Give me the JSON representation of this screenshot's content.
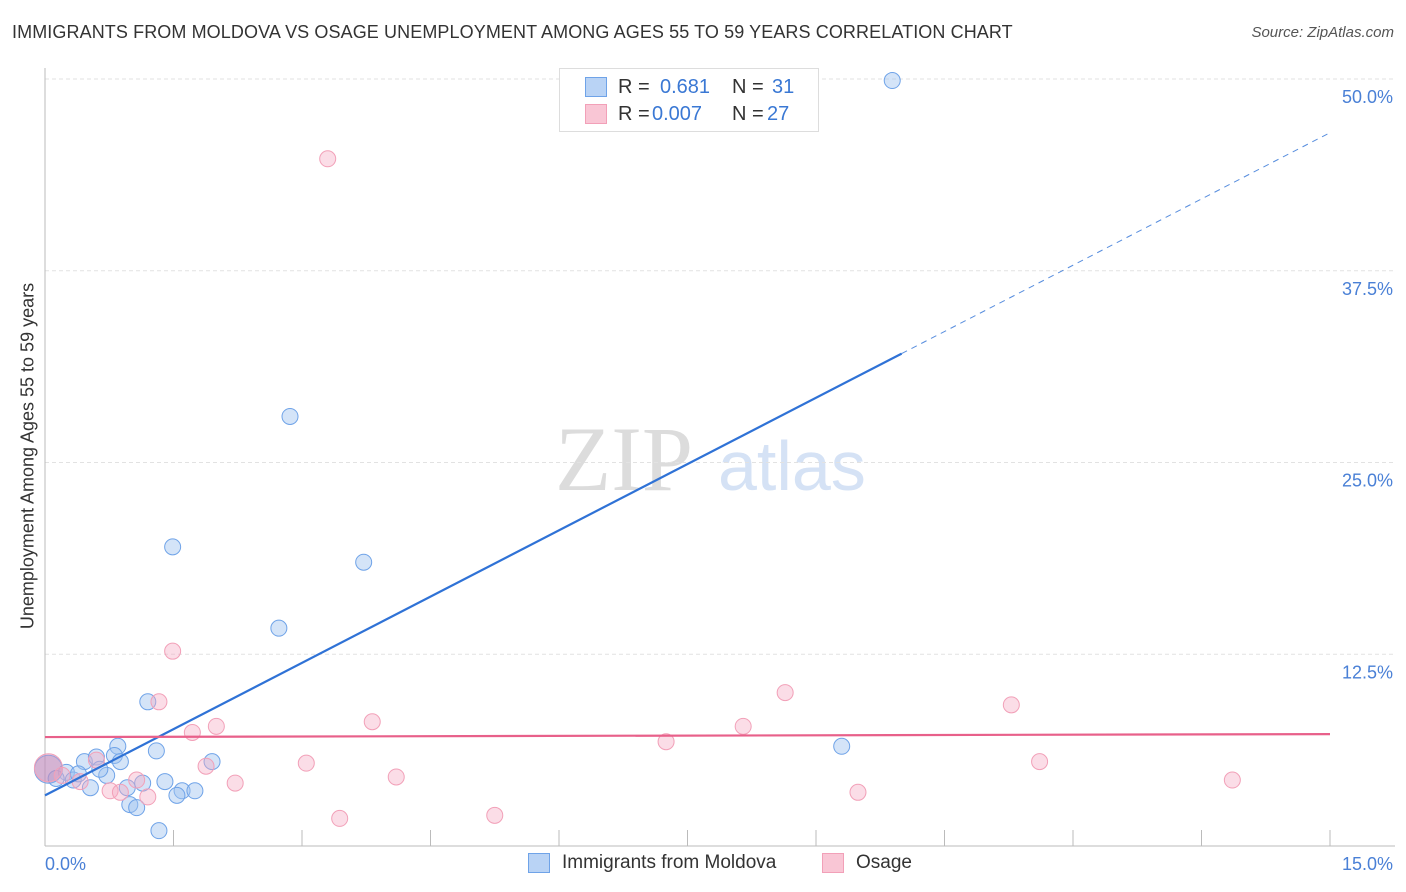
{
  "chart_data": {
    "type": "scatter",
    "title": "IMMIGRANTS FROM MOLDOVA VS OSAGE UNEMPLOYMENT AMONG AGES 55 TO 59 YEARS CORRELATION CHART",
    "source": "Source: ZipAtlas.com",
    "xlabel": "",
    "ylabel": "Unemployment Among Ages 55 to 59 years",
    "xlim": [
      0,
      15
    ],
    "ylim": [
      0,
      50
    ],
    "x_tick_labels": [
      "0.0%",
      "15.0%"
    ],
    "y_ticks": [
      12.5,
      25.0,
      37.5,
      50.0
    ],
    "y_tick_labels": [
      "12.5%",
      "25.0%",
      "37.5%",
      "50.0%"
    ],
    "grid": true,
    "watermark": "ZIPatlas",
    "legend_stats": [
      {
        "r_label": "R = ",
        "r": "0.681",
        "n_label": "N = ",
        "n": "31"
      },
      {
        "r_label": "R = ",
        "r": "0.007",
        "n_label": "N = ",
        "n": "27"
      }
    ],
    "series": [
      {
        "name": "Immigrants from Moldova",
        "color": "#6fa3e8",
        "line_color": "#2f72d6",
        "trend": {
          "intercept": 3.3,
          "slope": 2.88,
          "solid_until": 10.0
        },
        "points": [
          [
            9.89,
            49.9
          ],
          [
            2.86,
            28.0
          ],
          [
            1.49,
            19.5
          ],
          [
            3.72,
            18.5
          ],
          [
            2.73,
            14.2
          ],
          [
            1.2,
            9.4
          ],
          [
            0.85,
            6.5
          ],
          [
            1.3,
            6.2
          ],
          [
            0.81,
            5.9
          ],
          [
            1.95,
            5.5
          ],
          [
            0.46,
            5.5
          ],
          [
            0.6,
            5.8
          ],
          [
            0.25,
            4.8
          ],
          [
            0.72,
            4.6
          ],
          [
            0.13,
            4.4
          ],
          [
            0.33,
            4.3
          ],
          [
            0.53,
            3.8
          ],
          [
            0.96,
            3.8
          ],
          [
            1.14,
            4.1
          ],
          [
            1.4,
            4.2
          ],
          [
            1.6,
            3.6
          ],
          [
            1.75,
            3.6
          ],
          [
            1.54,
            3.3
          ],
          [
            0.99,
            2.7
          ],
          [
            1.07,
            2.5
          ],
          [
            1.33,
            1.0
          ],
          [
            9.3,
            6.5
          ],
          [
            0.04,
            5.0
          ],
          [
            0.39,
            4.7
          ],
          [
            0.64,
            5.0
          ],
          [
            0.88,
            5.5
          ]
        ]
      },
      {
        "name": "Osage",
        "color": "#f2a0b8",
        "line_color": "#e8608a",
        "trend": {
          "intercept": 7.1,
          "slope": 0.013,
          "solid_until": 15
        },
        "points": [
          [
            3.3,
            44.8
          ],
          [
            1.49,
            12.7
          ],
          [
            1.33,
            9.4
          ],
          [
            2.0,
            7.8
          ],
          [
            1.72,
            7.4
          ],
          [
            3.82,
            8.1
          ],
          [
            8.64,
            10.0
          ],
          [
            8.15,
            7.8
          ],
          [
            7.25,
            6.8
          ],
          [
            11.28,
            9.2
          ],
          [
            11.61,
            5.5
          ],
          [
            13.86,
            4.3
          ],
          [
            3.05,
            5.4
          ],
          [
            4.1,
            4.5
          ],
          [
            2.22,
            4.1
          ],
          [
            1.88,
            5.2
          ],
          [
            1.07,
            4.3
          ],
          [
            0.76,
            3.6
          ],
          [
            0.88,
            3.5
          ],
          [
            1.2,
            3.2
          ],
          [
            9.49,
            3.5
          ],
          [
            5.25,
            2.0
          ],
          [
            3.44,
            1.8
          ],
          [
            0.04,
            5.1
          ],
          [
            0.41,
            4.2
          ],
          [
            0.6,
            5.6
          ],
          [
            0.2,
            4.6
          ]
        ]
      }
    ]
  }
}
